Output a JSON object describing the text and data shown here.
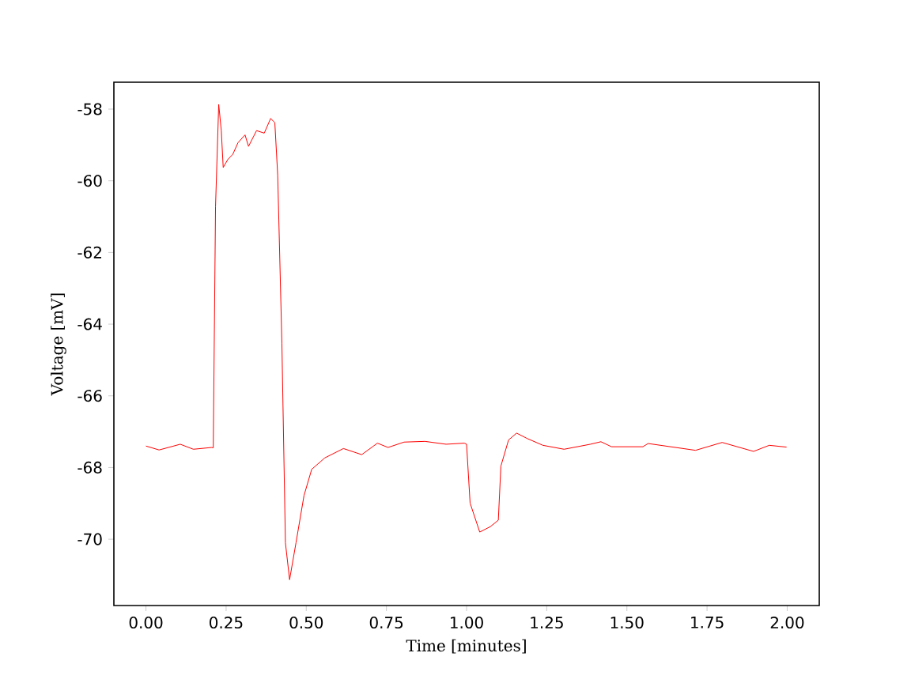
{
  "chart_data": {
    "type": "line",
    "xlabel": "Time [minutes]",
    "ylabel": "Voltage [mV]",
    "xlim": [
      -0.1,
      2.1
    ],
    "ylim": [
      -71.85,
      -57.25
    ],
    "xticks": [
      {
        "value": 0,
        "label": "0.00"
      },
      {
        "value": 0.25,
        "label": "0.25"
      },
      {
        "value": 0.5,
        "label": "0.50"
      },
      {
        "value": 0.75,
        "label": "0.75"
      },
      {
        "value": 1,
        "label": "1.00"
      },
      {
        "value": 1.25,
        "label": "1.25"
      },
      {
        "value": 1.5,
        "label": "1.50"
      },
      {
        "value": 1.75,
        "label": "1.75"
      },
      {
        "value": 2,
        "label": "2.00"
      }
    ],
    "yticks": [
      -70,
      -68,
      -66,
      -64,
      -62,
      -60,
      -58
    ],
    "marker": "none",
    "line_style": "solid",
    "series": [
      {
        "color": "#ff0000",
        "x": [
          0,
          0.041,
          0.107,
          0.148,
          0.205,
          0.21,
          0.217,
          0.227,
          0.235,
          0.241,
          0.255,
          0.271,
          0.287,
          0.309,
          0.32,
          0.345,
          0.369,
          0.389,
          0.402,
          0.411,
          0.424,
          0.435,
          0.448,
          0.468,
          0.493,
          0.517,
          0.558,
          0.616,
          0.673,
          0.722,
          0.755,
          0.805,
          0.87,
          0.936,
          0.993,
          1.0,
          1.011,
          1.041,
          1.074,
          1.099,
          1.107,
          1.131,
          1.156,
          1.189,
          1.238,
          1.304,
          1.386,
          1.419,
          1.452,
          1.55,
          1.566,
          1.714,
          1.797,
          1.895,
          1.944,
          1.998
        ],
        "values": [
          -67.4,
          -67.51,
          -67.35,
          -67.49,
          -67.44,
          -67.45,
          -60.73,
          -57.87,
          -58.6,
          -59.63,
          -59.41,
          -59.26,
          -58.94,
          -58.72,
          -59.04,
          -58.6,
          -58.67,
          -58.26,
          -58.38,
          -59.85,
          -64.53,
          -70.1,
          -71.13,
          -70.1,
          -68.78,
          -68.05,
          -67.73,
          -67.47,
          -67.64,
          -67.32,
          -67.44,
          -67.29,
          -67.27,
          -67.35,
          -67.32,
          -67.35,
          -68.99,
          -69.8,
          -69.65,
          -69.47,
          -67.96,
          -67.23,
          -67.04,
          -67.19,
          -67.38,
          -67.49,
          -67.35,
          -67.28,
          -67.42,
          -67.42,
          -67.33,
          -67.52,
          -67.3,
          -67.55,
          -67.38,
          -67.43
        ]
      }
    ]
  }
}
